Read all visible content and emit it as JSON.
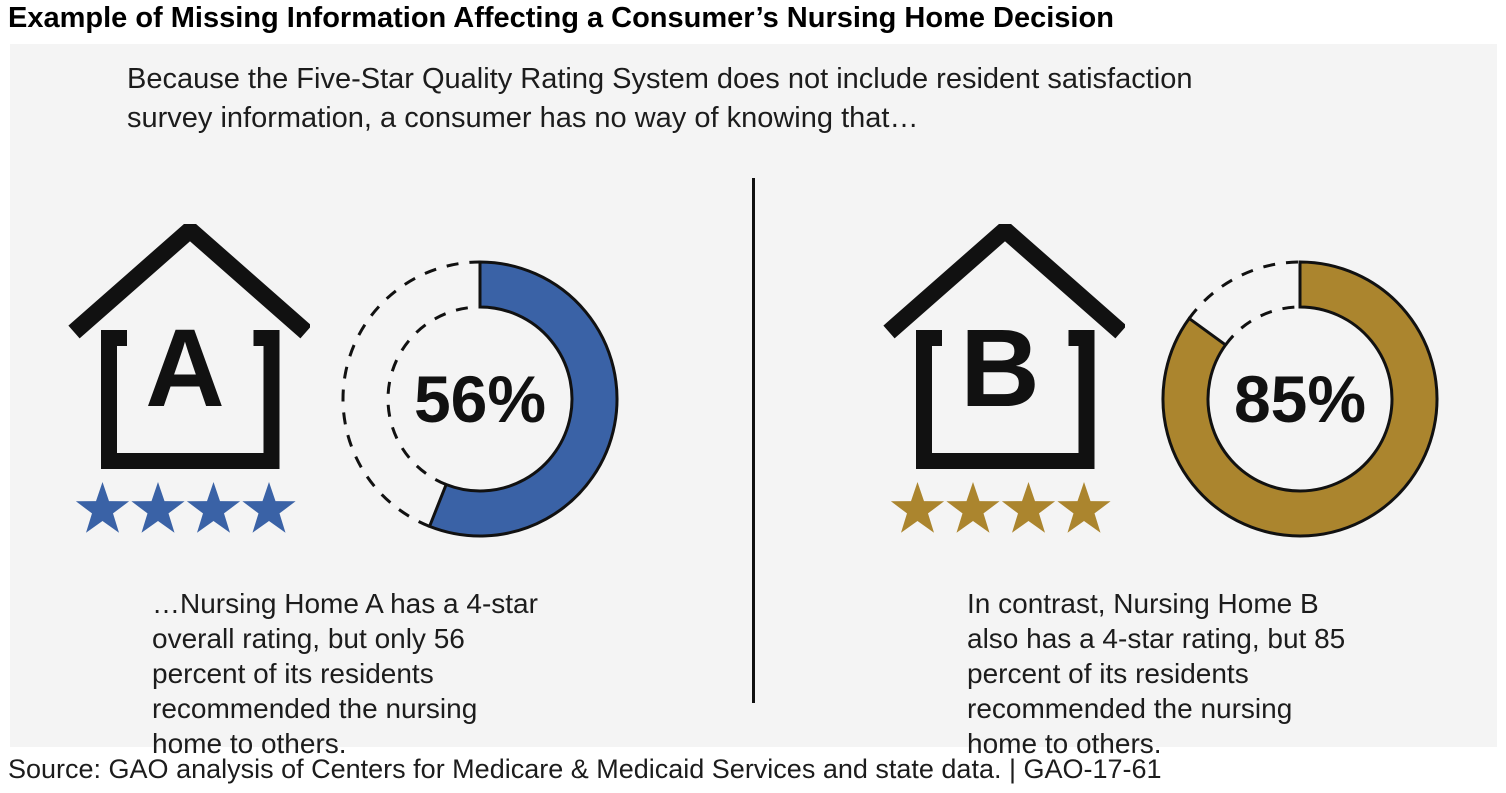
{
  "title": "Example of Missing Information Affecting a Consumer’s Nursing Home Decision",
  "panel": {
    "intro": "Because the Five-Star Quality Rating System does not include resident satisfaction\nsurvey information, a consumer has no way of knowing that…"
  },
  "homes": [
    {
      "letter": "A",
      "star_count": 4,
      "accent_color": "#3A62A6",
      "caption": "…Nursing Home A has a 4-star\noverall rating, but only 56\npercent of its residents\nrecommended the nursing\nhome to others."
    },
    {
      "letter": "B",
      "star_count": 4,
      "accent_color": "#AB852E",
      "caption": "In contrast, Nursing Home B\nalso has a 4-star rating, but 85\npercent of its residents\nrecommended the nursing\nhome to others."
    }
  ],
  "chart_data": [
    {
      "type": "pie",
      "subtype": "donut",
      "values": [
        56,
        44
      ],
      "center_label": "56%",
      "filled_color": "#3A62A6",
      "remainder_style": "dashed outline",
      "start_angle_deg": 0,
      "direction": "clockwise"
    },
    {
      "type": "pie",
      "subtype": "donut",
      "values": [
        85,
        15
      ],
      "center_label": "85%",
      "filled_color": "#AB852E",
      "remainder_style": "dashed outline",
      "start_angle_deg": 0,
      "direction": "clockwise"
    }
  ],
  "footer": {
    "source_line": "Source: GAO analysis of Centers for Medicare & Medicaid Services and state data.  |  GAO-17-61"
  },
  "colors": {
    "panel_bg": "#F4F4F4",
    "ink": "#111111",
    "home_a_accent": "#3A62A6",
    "home_b_accent": "#AB852E"
  }
}
